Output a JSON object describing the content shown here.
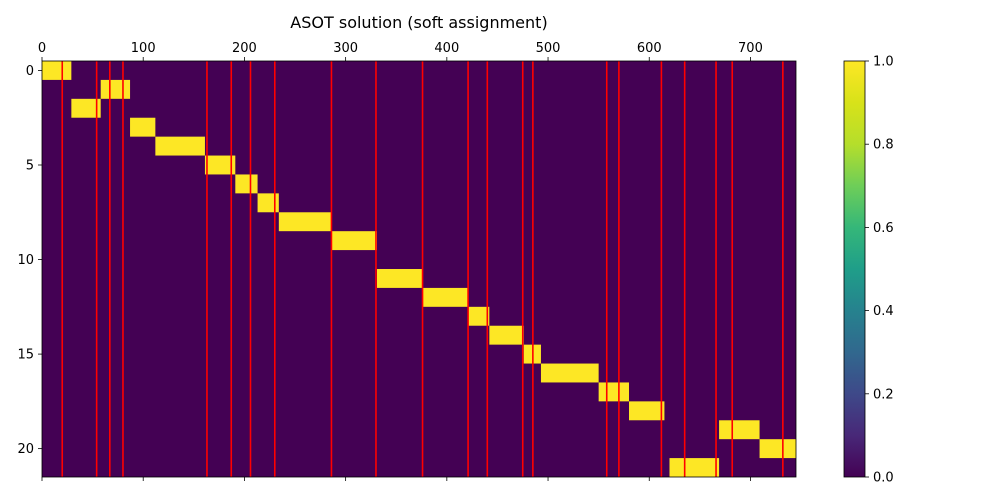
{
  "chart_data": [
    {
      "type": "heatmap",
      "title": "ASOT solution (soft assignment)",
      "xlabel": "",
      "ylabel": "",
      "xlim": [
        0,
        745
      ],
      "ylim": [
        21.5,
        -0.5
      ],
      "x_ticks": [
        0,
        100,
        200,
        300,
        400,
        500,
        600,
        700
      ],
      "y_ticks": [
        0,
        5,
        10,
        15,
        20
      ],
      "x_tick_position": "top",
      "grid": false,
      "colors": {
        "background": "#440154",
        "assigned": "#fde725",
        "boundary_lines": "#ff0000"
      },
      "segments": [
        {
          "row": 0,
          "x_start": 0,
          "x_end": 29
        },
        {
          "row": 1,
          "x_start": 58,
          "x_end": 87
        },
        {
          "row": 2,
          "x_start": 29,
          "x_end": 58
        },
        {
          "row": 3,
          "x_start": 87,
          "x_end": 112
        },
        {
          "row": 4,
          "x_start": 112,
          "x_end": 161
        },
        {
          "row": 5,
          "x_start": 161,
          "x_end": 191
        },
        {
          "row": 6,
          "x_start": 191,
          "x_end": 213
        },
        {
          "row": 7,
          "x_start": 213,
          "x_end": 234
        },
        {
          "row": 8,
          "x_start": 234,
          "x_end": 286
        },
        {
          "row": 9,
          "x_start": 286,
          "x_end": 331
        },
        {
          "row": 10,
          "x_start": 331,
          "x_end": 331
        },
        {
          "row": 11,
          "x_start": 331,
          "x_end": 376
        },
        {
          "row": 12,
          "x_start": 376,
          "x_end": 421
        },
        {
          "row": 13,
          "x_start": 421,
          "x_end": 442
        },
        {
          "row": 14,
          "x_start": 442,
          "x_end": 476
        },
        {
          "row": 15,
          "x_start": 476,
          "x_end": 493
        },
        {
          "row": 16,
          "x_start": 493,
          "x_end": 550
        },
        {
          "row": 17,
          "x_start": 550,
          "x_end": 580
        },
        {
          "row": 18,
          "x_start": 580,
          "x_end": 615
        },
        {
          "row": 19,
          "x_start": 669,
          "x_end": 709
        },
        {
          "row": 20,
          "x_start": 709,
          "x_end": 745
        },
        {
          "row": 21,
          "x_start": 620,
          "x_end": 669
        }
      ],
      "vertical_lines_x": [
        20,
        54,
        67,
        80,
        163,
        187,
        206,
        230,
        286,
        330,
        376,
        421,
        440,
        475,
        485,
        558,
        570,
        612,
        635,
        666,
        682,
        732
      ],
      "colorbar": {
        "vmin": 0.0,
        "vmax": 1.0,
        "ticks": [
          "0.0",
          "0.2",
          "0.4",
          "0.6",
          "0.8",
          "1.0"
        ]
      }
    }
  ]
}
